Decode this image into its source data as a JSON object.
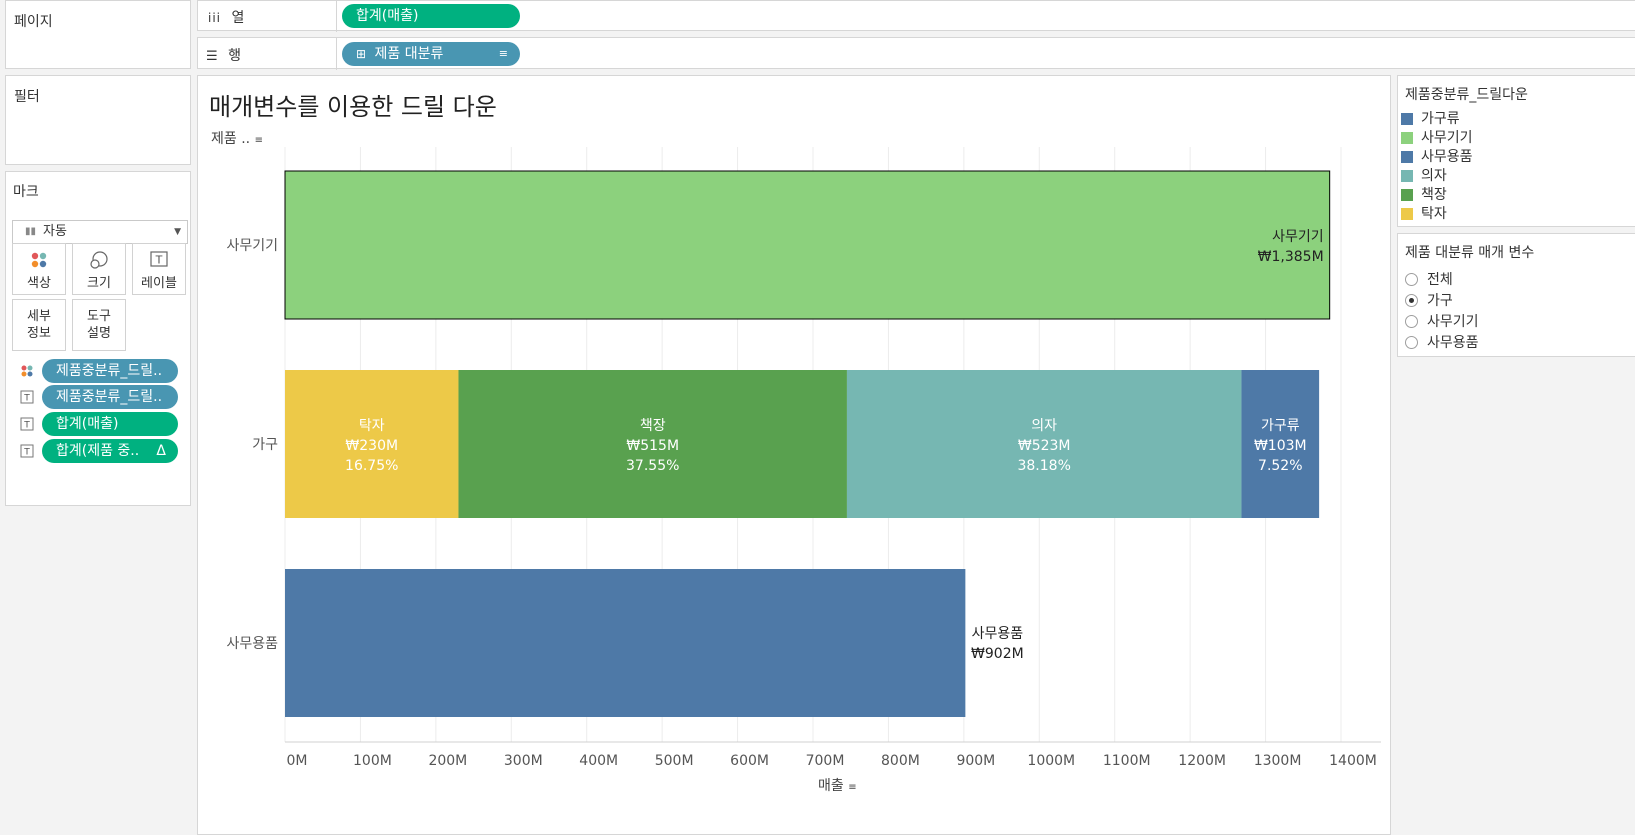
{
  "pages_panel": {
    "title": "페이지"
  },
  "filters_panel": {
    "title": "필터"
  },
  "marks_panel": {
    "title": "마크",
    "mark_type": "자동",
    "buttons": {
      "color": "색상",
      "size": "크기",
      "label": "레이블",
      "detail": [
        "세부",
        "정보"
      ],
      "tooltip": [
        "도구",
        "설명"
      ]
    },
    "pills": [
      {
        "text": "제품중분류_드릴..",
        "icon": "color-dots-icon"
      },
      {
        "text": "제품중분류_드릴..",
        "icon": "text-label-icon"
      },
      {
        "text": "합계(매출)",
        "icon": "text-label-icon"
      },
      {
        "text": "합계(제품 중..",
        "icon": "text-label-icon",
        "extra": "Δ"
      }
    ]
  },
  "shelves": {
    "columns": {
      "label": "열",
      "pill": "합계(매출)"
    },
    "rows": {
      "label": "행",
      "pill": "제품 대분류"
    }
  },
  "colors": {
    "가구류": "#4e79a7",
    "사무기기": "#8cd17d",
    "사무용품": "#4e79a7",
    "의자": "#76b7b2",
    "책장": "#59a14f",
    "탁자": "#edc948"
  },
  "legend": {
    "title": "제품중분류_드릴다운",
    "items": [
      {
        "label": "가구류",
        "color": "#4e79a7"
      },
      {
        "label": "사무기기",
        "color": "#8cd17d"
      },
      {
        "label": "사무용품",
        "color": "#4e79a7"
      },
      {
        "label": "의자",
        "color": "#76b7b2"
      },
      {
        "label": "책장",
        "color": "#59a14f"
      },
      {
        "label": "탁자",
        "color": "#edc948"
      }
    ]
  },
  "parameter": {
    "title": "제품 대분류 매개 변수",
    "options": [
      "전체",
      "가구",
      "사무기기",
      "사무용품"
    ],
    "selected": "가구"
  },
  "chart_data": {
    "type": "bar",
    "orientation": "horizontal",
    "stacked": true,
    "title": "매개변수를 이용한 드릴 다운",
    "row_header": "제품 ..",
    "xlabel": "매출",
    "x_ticks": [
      "0M",
      "100M",
      "200M",
      "300M",
      "400M",
      "500M",
      "600M",
      "700M",
      "800M",
      "900M",
      "1000M",
      "1100M",
      "1200M",
      "1300M",
      "1400M"
    ],
    "xlim": [
      0,
      1400
    ],
    "grid": true,
    "categories": [
      "사무기기",
      "가구",
      "사무용품"
    ],
    "bars": [
      {
        "category": "사무기기",
        "segments": [
          {
            "name": "사무기기",
            "value": 1385,
            "label": "₩1,385M"
          }
        ]
      },
      {
        "category": "가구",
        "segments": [
          {
            "name": "탁자",
            "value": 230,
            "label": "₩230M",
            "pct": "16.75%"
          },
          {
            "name": "책장",
            "value": 515,
            "label": "₩515M",
            "pct": "37.55%"
          },
          {
            "name": "의자",
            "value": 523,
            "label": "₩523M",
            "pct": "38.18%"
          },
          {
            "name": "가구류",
            "value": 103,
            "label": "₩103M",
            "pct": "7.52%"
          }
        ]
      },
      {
        "category": "사무용품",
        "segments": [
          {
            "name": "사무용품",
            "value": 902,
            "label": "₩902M"
          }
        ]
      }
    ]
  }
}
